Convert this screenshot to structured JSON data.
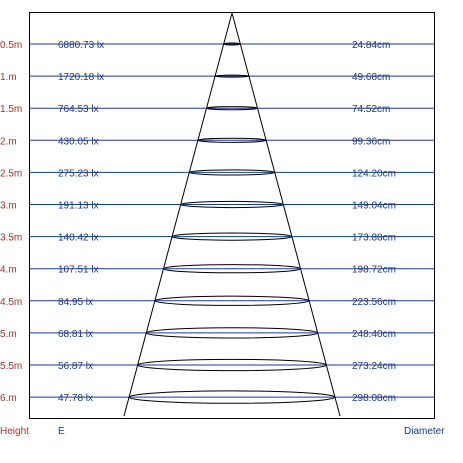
{
  "rows": [
    {
      "height": "0.5m",
      "lux": "6880.73 lx",
      "diameter": "24.84cm"
    },
    {
      "height": "1.m",
      "lux": "1720.18 lx",
      "diameter": "49.68cm"
    },
    {
      "height": "1.5m",
      "lux": "764.53 lx",
      "diameter": "74.52cm"
    },
    {
      "height": "2.m",
      "lux": "430.05 lx",
      "diameter": "99.36cm"
    },
    {
      "height": "2.5m",
      "lux": "275.23 lx",
      "diameter": "124.20cm"
    },
    {
      "height": "3.m",
      "lux": "191.13 lx",
      "diameter": "149.04cm"
    },
    {
      "height": "3.5m",
      "lux": "140.42 lx",
      "diameter": "173.88cm"
    },
    {
      "height": "4.m",
      "lux": "107.51 lx",
      "diameter": "198.72cm"
    },
    {
      "height": "4.5m",
      "lux": "84.95 lx",
      "diameter": "223.56cm"
    },
    {
      "height": "5.m",
      "lux": "68.81 lx",
      "diameter": "248.40cm"
    },
    {
      "height": "5.5m",
      "lux": "56.87 lx",
      "diameter": "273.24cm"
    },
    {
      "height": "6.m",
      "lux": "47.78 lx",
      "diameter": "298.08cm"
    }
  ],
  "footer": {
    "height_label": "Height",
    "lux_label": "E",
    "diameter_label": "Diameter"
  },
  "colors": {
    "height_text": "#a0342c",
    "value_text": "#1a3a8a",
    "grid_line": "#1a3a8a",
    "frame": "#000000",
    "cone": "#000000"
  }
}
